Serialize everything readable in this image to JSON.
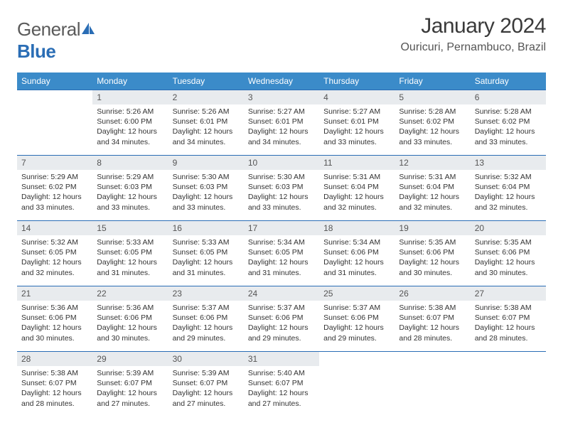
{
  "logo": {
    "text1": "General",
    "text2": "Blue"
  },
  "title": "January 2024",
  "location": "Ouricuri, Pernambuco, Brazil",
  "colors": {
    "header_bg": "#3b8bc9",
    "header_text": "#ffffff",
    "border": "#2a6db5",
    "date_bg": "#e8ebee",
    "logo_gray": "#5a5a5a",
    "logo_blue": "#2a6db5"
  },
  "dayNames": [
    "Sunday",
    "Monday",
    "Tuesday",
    "Wednesday",
    "Thursday",
    "Friday",
    "Saturday"
  ],
  "weeks": [
    [
      {
        "date": "",
        "sunrise": "",
        "sunset": "",
        "daylight": ""
      },
      {
        "date": "1",
        "sunrise": "Sunrise: 5:26 AM",
        "sunset": "Sunset: 6:00 PM",
        "daylight": "Daylight: 12 hours and 34 minutes."
      },
      {
        "date": "2",
        "sunrise": "Sunrise: 5:26 AM",
        "sunset": "Sunset: 6:01 PM",
        "daylight": "Daylight: 12 hours and 34 minutes."
      },
      {
        "date": "3",
        "sunrise": "Sunrise: 5:27 AM",
        "sunset": "Sunset: 6:01 PM",
        "daylight": "Daylight: 12 hours and 34 minutes."
      },
      {
        "date": "4",
        "sunrise": "Sunrise: 5:27 AM",
        "sunset": "Sunset: 6:01 PM",
        "daylight": "Daylight: 12 hours and 33 minutes."
      },
      {
        "date": "5",
        "sunrise": "Sunrise: 5:28 AM",
        "sunset": "Sunset: 6:02 PM",
        "daylight": "Daylight: 12 hours and 33 minutes."
      },
      {
        "date": "6",
        "sunrise": "Sunrise: 5:28 AM",
        "sunset": "Sunset: 6:02 PM",
        "daylight": "Daylight: 12 hours and 33 minutes."
      }
    ],
    [
      {
        "date": "7",
        "sunrise": "Sunrise: 5:29 AM",
        "sunset": "Sunset: 6:02 PM",
        "daylight": "Daylight: 12 hours and 33 minutes."
      },
      {
        "date": "8",
        "sunrise": "Sunrise: 5:29 AM",
        "sunset": "Sunset: 6:03 PM",
        "daylight": "Daylight: 12 hours and 33 minutes."
      },
      {
        "date": "9",
        "sunrise": "Sunrise: 5:30 AM",
        "sunset": "Sunset: 6:03 PM",
        "daylight": "Daylight: 12 hours and 33 minutes."
      },
      {
        "date": "10",
        "sunrise": "Sunrise: 5:30 AM",
        "sunset": "Sunset: 6:03 PM",
        "daylight": "Daylight: 12 hours and 33 minutes."
      },
      {
        "date": "11",
        "sunrise": "Sunrise: 5:31 AM",
        "sunset": "Sunset: 6:04 PM",
        "daylight": "Daylight: 12 hours and 32 minutes."
      },
      {
        "date": "12",
        "sunrise": "Sunrise: 5:31 AM",
        "sunset": "Sunset: 6:04 PM",
        "daylight": "Daylight: 12 hours and 32 minutes."
      },
      {
        "date": "13",
        "sunrise": "Sunrise: 5:32 AM",
        "sunset": "Sunset: 6:04 PM",
        "daylight": "Daylight: 12 hours and 32 minutes."
      }
    ],
    [
      {
        "date": "14",
        "sunrise": "Sunrise: 5:32 AM",
        "sunset": "Sunset: 6:05 PM",
        "daylight": "Daylight: 12 hours and 32 minutes."
      },
      {
        "date": "15",
        "sunrise": "Sunrise: 5:33 AM",
        "sunset": "Sunset: 6:05 PM",
        "daylight": "Daylight: 12 hours and 31 minutes."
      },
      {
        "date": "16",
        "sunrise": "Sunrise: 5:33 AM",
        "sunset": "Sunset: 6:05 PM",
        "daylight": "Daylight: 12 hours and 31 minutes."
      },
      {
        "date": "17",
        "sunrise": "Sunrise: 5:34 AM",
        "sunset": "Sunset: 6:05 PM",
        "daylight": "Daylight: 12 hours and 31 minutes."
      },
      {
        "date": "18",
        "sunrise": "Sunrise: 5:34 AM",
        "sunset": "Sunset: 6:06 PM",
        "daylight": "Daylight: 12 hours and 31 minutes."
      },
      {
        "date": "19",
        "sunrise": "Sunrise: 5:35 AM",
        "sunset": "Sunset: 6:06 PM",
        "daylight": "Daylight: 12 hours and 30 minutes."
      },
      {
        "date": "20",
        "sunrise": "Sunrise: 5:35 AM",
        "sunset": "Sunset: 6:06 PM",
        "daylight": "Daylight: 12 hours and 30 minutes."
      }
    ],
    [
      {
        "date": "21",
        "sunrise": "Sunrise: 5:36 AM",
        "sunset": "Sunset: 6:06 PM",
        "daylight": "Daylight: 12 hours and 30 minutes."
      },
      {
        "date": "22",
        "sunrise": "Sunrise: 5:36 AM",
        "sunset": "Sunset: 6:06 PM",
        "daylight": "Daylight: 12 hours and 30 minutes."
      },
      {
        "date": "23",
        "sunrise": "Sunrise: 5:37 AM",
        "sunset": "Sunset: 6:06 PM",
        "daylight": "Daylight: 12 hours and 29 minutes."
      },
      {
        "date": "24",
        "sunrise": "Sunrise: 5:37 AM",
        "sunset": "Sunset: 6:06 PM",
        "daylight": "Daylight: 12 hours and 29 minutes."
      },
      {
        "date": "25",
        "sunrise": "Sunrise: 5:37 AM",
        "sunset": "Sunset: 6:06 PM",
        "daylight": "Daylight: 12 hours and 29 minutes."
      },
      {
        "date": "26",
        "sunrise": "Sunrise: 5:38 AM",
        "sunset": "Sunset: 6:07 PM",
        "daylight": "Daylight: 12 hours and 28 minutes."
      },
      {
        "date": "27",
        "sunrise": "Sunrise: 5:38 AM",
        "sunset": "Sunset: 6:07 PM",
        "daylight": "Daylight: 12 hours and 28 minutes."
      }
    ],
    [
      {
        "date": "28",
        "sunrise": "Sunrise: 5:38 AM",
        "sunset": "Sunset: 6:07 PM",
        "daylight": "Daylight: 12 hours and 28 minutes."
      },
      {
        "date": "29",
        "sunrise": "Sunrise: 5:39 AM",
        "sunset": "Sunset: 6:07 PM",
        "daylight": "Daylight: 12 hours and 27 minutes."
      },
      {
        "date": "30",
        "sunrise": "Sunrise: 5:39 AM",
        "sunset": "Sunset: 6:07 PM",
        "daylight": "Daylight: 12 hours and 27 minutes."
      },
      {
        "date": "31",
        "sunrise": "Sunrise: 5:40 AM",
        "sunset": "Sunset: 6:07 PM",
        "daylight": "Daylight: 12 hours and 27 minutes."
      },
      {
        "date": "",
        "sunrise": "",
        "sunset": "",
        "daylight": ""
      },
      {
        "date": "",
        "sunrise": "",
        "sunset": "",
        "daylight": ""
      },
      {
        "date": "",
        "sunrise": "",
        "sunset": "",
        "daylight": ""
      }
    ]
  ]
}
